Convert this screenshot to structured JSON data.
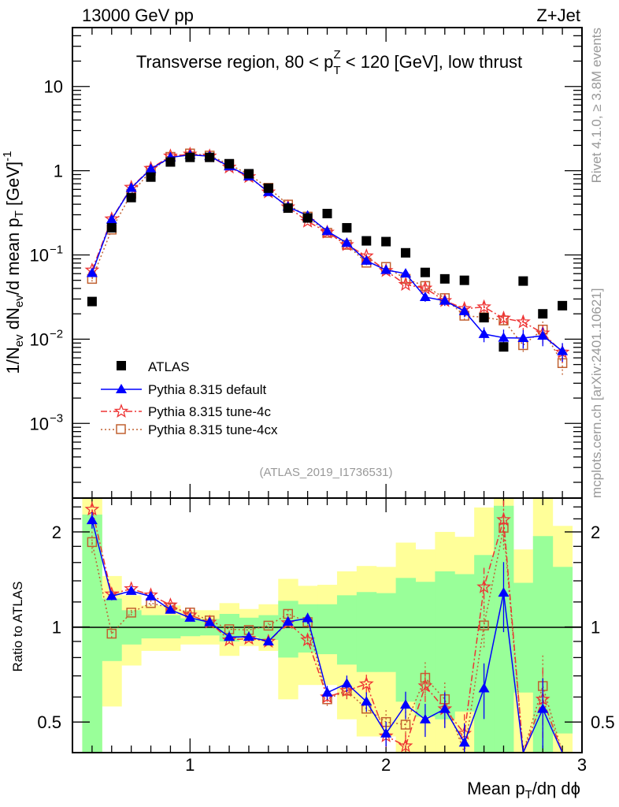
{
  "header": {
    "left": "13000 GeV pp",
    "right": "Z+Jet"
  },
  "side_text": {
    "rivet": "Rivet 4.1.0, ≥ 3.8M events",
    "mcplots": "mcplots.cern.ch [arXiv:2401.10621]"
  },
  "analysis_id": "(ATLAS_2019_I1736531)",
  "colors": {
    "atlas": "#000000",
    "default": "#0000ff",
    "tune4c": "#ee3333",
    "tune4cx": "#c06030",
    "band_inner": "#99ff99",
    "band_outer": "#ffff99"
  },
  "chart_data": {
    "type": "scatter",
    "title_parts": [
      "Transverse region, 80 < p",
      "T",
      "Z",
      " < 120 [GeV], low thrust"
    ],
    "ylabel_parts": [
      "1/N",
      "ev",
      " dN",
      "ev",
      "/d mean p",
      "T",
      " [GeV]",
      "-1"
    ],
    "xlabel_parts": [
      "Mean p",
      "T",
      "/dη dϕ"
    ],
    "ratio_ylabel": "Ratio to ATLAS",
    "xlim": [
      0.4,
      3.0
    ],
    "ylim": [
      0.00013,
      50
    ],
    "yscale": "log",
    "ratio_ylim": [
      0.4,
      2.56
    ],
    "ratio_yscale": "log",
    "x_ticks": [
      "1",
      "2",
      "3"
    ],
    "y_ticks": [
      {
        "base": "10",
        "exp": ""
      },
      {
        "base": "1",
        "exp": ""
      },
      {
        "base": "10",
        "exp": "−1"
      },
      {
        "base": "10",
        "exp": "−2"
      },
      {
        "base": "10",
        "exp": "−3"
      }
    ],
    "ratio_ticks": [
      "2",
      "1",
      "0.5"
    ],
    "x": [
      0.5,
      0.6,
      0.7,
      0.8,
      0.9,
      1.0,
      1.1,
      1.2,
      1.3,
      1.4,
      1.5,
      1.6,
      1.7,
      1.8,
      1.9,
      2.0,
      2.1,
      2.2,
      2.3,
      2.4,
      2.5,
      2.6,
      2.7,
      2.8,
      2.9
    ],
    "series": [
      {
        "name": "ATLAS",
        "key": "atlas",
        "marker": "filled-square",
        "values": [
          0.028,
          0.21,
          0.48,
          0.84,
          1.27,
          1.44,
          1.44,
          1.21,
          0.92,
          0.62,
          0.36,
          0.275,
          0.31,
          0.21,
          0.147,
          0.144,
          0.106,
          0.062,
          0.052,
          0.05,
          0.018,
          0.0081,
          0.049,
          0.02,
          0.025
        ]
      },
      {
        "name": "Pythia 8.315 default",
        "key": "default",
        "marker": "filled-triangle",
        "values": [
          0.061,
          0.263,
          0.624,
          1.05,
          1.44,
          1.54,
          1.49,
          1.125,
          0.856,
          0.558,
          0.374,
          0.293,
          0.192,
          0.139,
          0.0853,
          0.0662,
          0.0601,
          0.0316,
          0.0286,
          0.0215,
          0.0115,
          0.0104,
          0.0103,
          0.011,
          0.0072
        ],
        "rel_err": [
          0.06,
          0.03,
          0.02,
          0.02,
          0.02,
          0.02,
          0.02,
          0.02,
          0.02,
          0.02,
          0.03,
          0.04,
          0.05,
          0.06,
          0.07,
          0.09,
          0.1,
          0.12,
          0.13,
          0.15,
          0.2,
          0.25,
          0.25,
          0.25,
          0.25
        ]
      },
      {
        "name": "Pythia 8.315 tune-4c",
        "key": "tune4c",
        "marker": "open-star",
        "values": [
          0.066,
          0.267,
          0.634,
          1.06,
          1.49,
          1.57,
          1.49,
          1.1,
          0.846,
          0.558,
          0.371,
          0.25,
          0.186,
          0.132,
          0.097,
          0.065,
          0.0445,
          0.0403,
          0.0286,
          0.023,
          0.0241,
          0.0177,
          0.016,
          0.0118,
          0.007
        ],
        "rel_err": [
          0.06,
          0.03,
          0.02,
          0.02,
          0.02,
          0.02,
          0.02,
          0.02,
          0.02,
          0.02,
          0.03,
          0.04,
          0.05,
          0.06,
          0.07,
          0.09,
          0.1,
          0.12,
          0.13,
          0.15,
          0.15,
          0.15,
          0.2,
          0.25,
          0.25
        ]
      },
      {
        "name": "Pythia 8.315 tune-4cx",
        "key": "tune4cx",
        "marker": "open-square",
        "values": [
          0.052,
          0.2,
          0.533,
          1.0,
          1.46,
          1.6,
          1.51,
          1.19,
          0.9,
          0.626,
          0.396,
          0.285,
          0.183,
          0.132,
          0.081,
          0.072,
          0.052,
          0.0428,
          0.0307,
          0.019,
          0.0182,
          0.0167,
          0.0085,
          0.013,
          0.0052
        ],
        "rel_err": [
          0.08,
          0.04,
          0.02,
          0.02,
          0.02,
          0.02,
          0.02,
          0.02,
          0.02,
          0.02,
          0.03,
          0.04,
          0.05,
          0.06,
          0.07,
          0.09,
          0.1,
          0.12,
          0.13,
          0.15,
          0.15,
          0.15,
          0.2,
          0.25,
          0.3
        ]
      }
    ],
    "ratio_band_inner": {
      "upper": [
        2.27,
        1.23,
        1.13,
        1.09,
        1.09,
        1.065,
        1.06,
        1.1,
        1.07,
        1.09,
        1.21,
        1.18,
        1.18,
        1.26,
        1.29,
        1.28,
        1.43,
        1.39,
        1.5,
        1.47,
        1.69,
        2.42,
        1.38,
        1.94,
        1.55
      ],
      "lower": [
        0.4,
        0.78,
        0.88,
        0.92,
        0.92,
        0.935,
        0.94,
        0.9,
        0.93,
        0.91,
        0.8,
        0.83,
        0.82,
        0.76,
        0.72,
        0.72,
        0.58,
        0.52,
        0.51,
        0.54,
        0.4,
        0.4,
        0.62,
        0.4,
        0.46
      ]
    },
    "ratio_band_outer": {
      "upper": [
        2.56,
        1.45,
        1.26,
        1.17,
        1.17,
        1.13,
        1.13,
        1.19,
        1.14,
        1.18,
        1.42,
        1.35,
        1.36,
        1.5,
        1.56,
        1.55,
        1.85,
        1.76,
        2.0,
        1.93,
        2.39,
        2.56,
        1.76,
        2.56,
        2.09
      ],
      "lower": [
        0.4,
        0.56,
        0.755,
        0.84,
        0.84,
        0.88,
        0.88,
        0.81,
        0.87,
        0.84,
        0.59,
        0.655,
        0.655,
        0.51,
        0.45,
        0.45,
        0.4,
        0.4,
        0.4,
        0.4,
        0.4,
        0.4,
        0.4,
        0.4,
        0.4
      ]
    },
    "legend_placement": "middle-left"
  }
}
